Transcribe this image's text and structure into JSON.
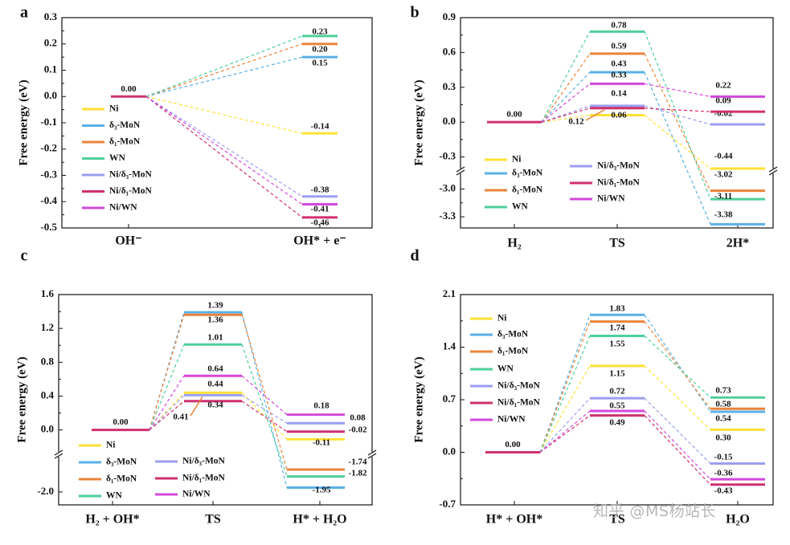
{
  "watermark": "知乎 @MS杨站长",
  "colors": {
    "Ni": "#ffe135",
    "d3MoN": "#5ab0e6",
    "d1MoN": "#e9843b",
    "WN": "#4fcf9a",
    "Nid3MoN": "#9b9ef0",
    "Nid1MoN": "#d0306e",
    "NiWN": "#d249dc"
  },
  "chart_data": [
    {
      "panel": "a",
      "type": "energy-diagram",
      "ylabel": "Free energy (eV)",
      "ylim": [
        -0.5,
        0.3
      ],
      "yticks": [
        "0.3",
        "0.2",
        "0.1",
        "0.0",
        "-0.1",
        "-0.2",
        "-0.3",
        "-0.4",
        "-0.5"
      ],
      "ytick_values": [
        0.3,
        0.2,
        0.1,
        0.0,
        -0.1,
        -0.2,
        -0.3,
        -0.4,
        -0.5
      ],
      "categories": [
        "OH⁻",
        "OH* + e⁻"
      ],
      "start": {
        "value": 0.0,
        "label": "0.00"
      },
      "series": [
        {
          "name": "Ni",
          "color_key": "Ni",
          "values": [
            0.0,
            -0.14
          ],
          "labels": [
            "",
            "-0.14"
          ]
        },
        {
          "name": "δ₃-MoN",
          "color_key": "d3MoN",
          "values": [
            0.0,
            0.15
          ],
          "labels": [
            "",
            "0.15"
          ]
        },
        {
          "name": "δ₁-MoN",
          "color_key": "d1MoN",
          "values": [
            0.0,
            0.2
          ],
          "labels": [
            "",
            "0.20"
          ]
        },
        {
          "name": "WN",
          "color_key": "WN",
          "values": [
            0.0,
            0.23
          ],
          "labels": [
            "",
            "0.23"
          ]
        },
        {
          "name": "Ni/δ₃-MoN",
          "color_key": "Nid3MoN",
          "values": [
            0.0,
            -0.38
          ],
          "labels": [
            "",
            "-0.38"
          ]
        },
        {
          "name": "Ni/δ₁-MoN",
          "color_key": "Nid1MoN",
          "values": [
            0.0,
            -0.46
          ],
          "labels": [
            "",
            "-0.46"
          ]
        },
        {
          "name": "Ni/WN",
          "color_key": "NiWN",
          "values": [
            0.0,
            -0.41
          ],
          "labels": [
            "",
            "-0.41"
          ]
        }
      ]
    },
    {
      "panel": "b",
      "type": "energy-diagram",
      "ylabel": "Free energy (eV)",
      "broken_axis": true,
      "yticks": [
        "0.9",
        "0.6",
        "0.3",
        "0.0",
        "-0.3",
        "-3.0",
        "-3.3"
      ],
      "ytick_values": [
        0.9,
        0.6,
        0.3,
        0.0,
        -0.3,
        -3.0,
        -3.3
      ],
      "categories": [
        "H₂",
        "TS",
        "2H*"
      ],
      "start": {
        "value": 0.0,
        "label": "0.00"
      },
      "annotation": {
        "text": "0.12"
      },
      "series": [
        {
          "name": "Ni",
          "color_key": "Ni",
          "values": [
            0.0,
            0.06,
            -0.44
          ],
          "labels": [
            "",
            "0.06",
            "-0.44"
          ]
        },
        {
          "name": "δ₃-MoN",
          "color_key": "d3MoN",
          "values": [
            0.0,
            0.43,
            -3.38
          ],
          "labels": [
            "",
            "0.43",
            "-3.38"
          ]
        },
        {
          "name": "δ₁-MoN",
          "color_key": "d1MoN",
          "values": [
            0.0,
            0.59,
            -3.02
          ],
          "labels": [
            "",
            "0.59",
            "-3.02"
          ]
        },
        {
          "name": "WN",
          "color_key": "WN",
          "values": [
            0.0,
            0.78,
            -3.11
          ],
          "labels": [
            "",
            "0.78",
            "-3.11"
          ]
        },
        {
          "name": "Ni/δ₃-MoN",
          "color_key": "Nid3MoN",
          "values": [
            0.0,
            0.14,
            -0.02
          ],
          "labels": [
            "",
            "0.14",
            "-0.02"
          ]
        },
        {
          "name": "Ni/δ₁-MoN",
          "color_key": "Nid1MoN",
          "values": [
            0.0,
            0.12,
            0.09
          ],
          "labels": [
            "",
            "",
            "0.09"
          ]
        },
        {
          "name": "Ni/WN",
          "color_key": "NiWN",
          "values": [
            0.0,
            0.33,
            0.22
          ],
          "labels": [
            "",
            "0.33",
            "0.22"
          ]
        }
      ]
    },
    {
      "panel": "c",
      "type": "energy-diagram",
      "ylabel": "Free energy (eV)",
      "broken_axis": true,
      "yticks": [
        "1.6",
        "1.2",
        "0.8",
        "0.4",
        "0.0",
        "-2.0"
      ],
      "ytick_values": [
        1.6,
        1.2,
        0.8,
        0.4,
        0.0,
        -2.0
      ],
      "categories": [
        "H₂ + OH*",
        "TS",
        "H* + H₂O"
      ],
      "start": {
        "value": 0.0,
        "label": "0.00"
      },
      "annotation": {
        "text": "0.41"
      },
      "series": [
        {
          "name": "Ni",
          "color_key": "Ni",
          "values": [
            0.0,
            0.44,
            -0.11
          ],
          "labels": [
            "",
            "0.44",
            "-0.11"
          ]
        },
        {
          "name": "δ₃-MoN",
          "color_key": "d3MoN",
          "values": [
            0.0,
            1.39,
            -1.95
          ],
          "labels": [
            "",
            "1.39",
            "-1.95"
          ]
        },
        {
          "name": "δ₁-MoN",
          "color_key": "d1MoN",
          "values": [
            0.0,
            1.36,
            -1.74
          ],
          "labels": [
            "",
            "1.36",
            "-1.74"
          ]
        },
        {
          "name": "WN",
          "color_key": "WN",
          "values": [
            0.0,
            1.01,
            -1.82
          ],
          "labels": [
            "",
            "1.01",
            "-1.82"
          ]
        },
        {
          "name": "Ni/δ₃-MoN",
          "color_key": "Nid3MoN",
          "values": [
            0.0,
            0.41,
            0.08
          ],
          "labels": [
            "",
            "",
            "0.08"
          ]
        },
        {
          "name": "Ni/δ₁-MoN",
          "color_key": "Nid1MoN",
          "values": [
            0.0,
            0.34,
            -0.02
          ],
          "labels": [
            "",
            "0.34",
            "-0.02"
          ]
        },
        {
          "name": "Ni/WN",
          "color_key": "NiWN",
          "values": [
            0.0,
            0.64,
            0.18
          ],
          "labels": [
            "",
            "0.64",
            "0.18"
          ]
        }
      ]
    },
    {
      "panel": "d",
      "type": "energy-diagram",
      "ylabel": "Free energy (eV)",
      "ylim": [
        -0.7,
        2.1
      ],
      "yticks": [
        "2.1",
        "1.4",
        "0.7",
        "0.0",
        "-0.7"
      ],
      "ytick_values": [
        2.1,
        1.4,
        0.7,
        0.0,
        -0.7
      ],
      "categories": [
        "H* + OH*",
        "TS",
        "H₂O"
      ],
      "start": {
        "value": 0.0,
        "label": "0.00"
      },
      "series": [
        {
          "name": "Ni",
          "color_key": "Ni",
          "values": [
            0.0,
            1.15,
            0.3
          ],
          "labels": [
            "",
            "1.15",
            "0.30"
          ]
        },
        {
          "name": "δ₃-MoN",
          "color_key": "d3MoN",
          "values": [
            0.0,
            1.83,
            0.54
          ],
          "labels": [
            "",
            "1.83",
            "0.54"
          ]
        },
        {
          "name": "δ₁-MoN",
          "color_key": "d1MoN",
          "values": [
            0.0,
            1.74,
            0.58
          ],
          "labels": [
            "",
            "1.74",
            "0.58"
          ]
        },
        {
          "name": "WN",
          "color_key": "WN",
          "values": [
            0.0,
            1.55,
            0.73
          ],
          "labels": [
            "",
            "1.55",
            "0.73"
          ]
        },
        {
          "name": "Ni/δ₃-MoN",
          "color_key": "Nid3MoN",
          "values": [
            0.0,
            0.72,
            -0.15
          ],
          "labels": [
            "",
            "0.72",
            "-0.15"
          ]
        },
        {
          "name": "Ni/δ₁-MoN",
          "color_key": "Nid1MoN",
          "values": [
            0.0,
            0.49,
            -0.43
          ],
          "labels": [
            "",
            "0.49",
            "-0.43"
          ]
        },
        {
          "name": "Ni/WN",
          "color_key": "NiWN",
          "values": [
            0.0,
            0.55,
            -0.36
          ],
          "labels": [
            "",
            "0.55",
            "-0.36"
          ]
        }
      ]
    }
  ]
}
